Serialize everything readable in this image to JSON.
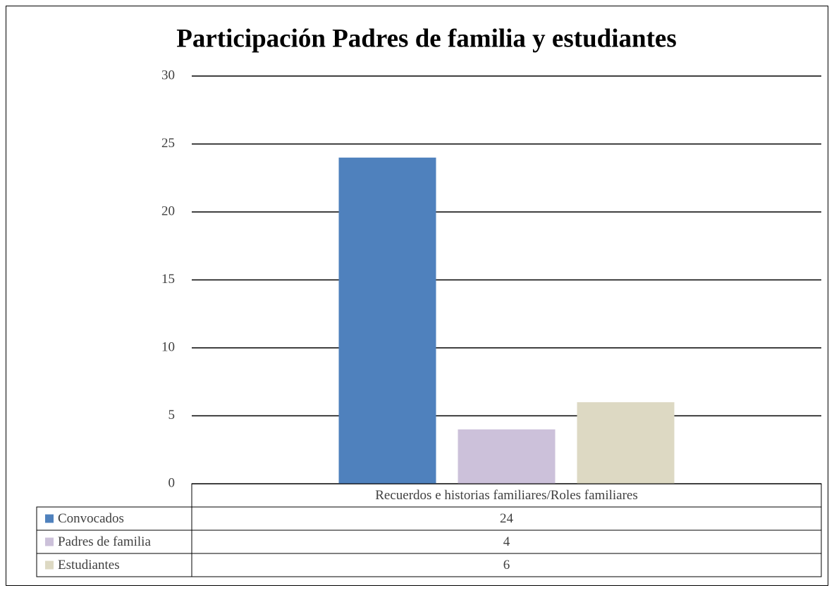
{
  "chart_data": {
    "type": "bar",
    "title": "Participación Padres de familia y estudiantes",
    "categories": [
      "Recuerdos e historias familiares/Roles familiares"
    ],
    "series": [
      {
        "name": "Convocados",
        "color": "#4f81bd",
        "values": [
          24
        ]
      },
      {
        "name": "Padres de familia",
        "color": "#ccc1da",
        "values": [
          4
        ]
      },
      {
        "name": "Estudiantes",
        "color": "#ddd9c3",
        "values": [
          6
        ]
      }
    ],
    "ylim": [
      0,
      30
    ],
    "yticks": [
      0,
      5,
      10,
      15,
      20,
      25,
      30
    ],
    "grid": true,
    "data_table": true
  }
}
